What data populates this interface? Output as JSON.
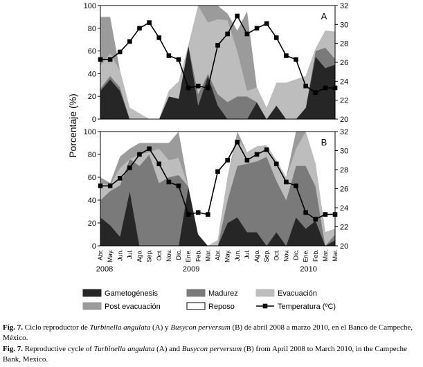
{
  "chart_data": [
    {
      "type": "area",
      "panel_label": "A",
      "ylabel": "Porcentaje (%)",
      "y2label": "",
      "ylim": [
        0,
        100
      ],
      "y2lim": [
        20,
        32
      ],
      "yticks": [
        0,
        20,
        40,
        60,
        80,
        100
      ],
      "y2ticks": [
        20,
        22,
        24,
        26,
        28,
        30,
        32
      ],
      "series": [
        {
          "name": "Gametogénesis",
          "color": "#262626",
          "values": [
            25,
            35,
            25,
            0,
            0,
            0,
            0,
            20,
            18,
            65,
            12,
            38,
            12,
            0,
            0,
            0,
            15,
            0,
            12,
            0,
            0,
            10,
            55,
            45,
            48
          ]
        },
        {
          "name": "Madurez",
          "color": "#7a7a7a",
          "values": [
            2,
            3,
            3,
            0,
            0,
            0,
            0,
            0,
            0,
            0,
            10,
            2,
            10,
            15,
            20,
            20,
            0,
            0,
            0,
            0,
            0,
            0,
            5,
            18,
            5
          ]
        },
        {
          "name": "Evacuación",
          "color": "#bdbdbd",
          "values": [
            20,
            20,
            15,
            10,
            5,
            0,
            0,
            5,
            15,
            0,
            78,
            45,
            66,
            72,
            40,
            5,
            13,
            10,
            20,
            32,
            35,
            28,
            2,
            15,
            24
          ]
        },
        {
          "name": "Post evacuación",
          "color": "#9b9b9b",
          "values": [
            43,
            32,
            0,
            0,
            0,
            0,
            0,
            0,
            0,
            0,
            0,
            15,
            12,
            6,
            18,
            70,
            0,
            0,
            0,
            0,
            0,
            0,
            0,
            0,
            0
          ]
        },
        {
          "name": "Reposo",
          "color": "#ffffff",
          "values": [
            10,
            0,
            57,
            90,
            95,
            100,
            100,
            75,
            67,
            35,
            0,
            0,
            0,
            7,
            22,
            5,
            72,
            90,
            68,
            68,
            65,
            62,
            38,
            22,
            23
          ]
        }
      ],
      "temperature": [
        26.3,
        26.3,
        27.1,
        28.2,
        29.6,
        30.2,
        28.6,
        26.7,
        26.3,
        23.3,
        23.5,
        23.3,
        27.8,
        29.0,
        30.9,
        29.0,
        29.6,
        30.1,
        28.6,
        26.7,
        26.3,
        23.5,
        22.8,
        23.3,
        23.3
      ]
    },
    {
      "type": "area",
      "panel_label": "B",
      "ylabel": "Porcentaje (%)",
      "y2label": "",
      "ylim": [
        0,
        100
      ],
      "y2lim": [
        20,
        32
      ],
      "yticks": [
        0,
        20,
        40,
        60,
        80,
        100
      ],
      "y2ticks": [
        20,
        22,
        24,
        26,
        28,
        30,
        32
      ],
      "series": [
        {
          "name": "Gametogénesis",
          "color": "#262626",
          "values": [
            25,
            18,
            8,
            48,
            0,
            0,
            0,
            0,
            0,
            52,
            10,
            0,
            0,
            20,
            25,
            12,
            12,
            0,
            12,
            0,
            25,
            15,
            22,
            0,
            5
          ]
        },
        {
          "name": "Madurez",
          "color": "#7a7a7a",
          "values": [
            15,
            30,
            45,
            28,
            70,
            80,
            55,
            60,
            62,
            0,
            0,
            0,
            0,
            20,
            45,
            60,
            62,
            78,
            45,
            40,
            45,
            55,
            30,
            0,
            5
          ]
        },
        {
          "name": "Evacuación",
          "color": "#bdbdbd",
          "values": [
            15,
            5,
            15,
            0,
            10,
            2,
            30,
            15,
            15,
            0,
            0,
            0,
            5,
            20,
            25,
            10,
            13,
            10,
            18,
            20,
            15,
            30,
            20,
            12,
            5
          ]
        },
        {
          "name": "Post evacuación",
          "color": "#9b9b9b",
          "values": [
            5,
            2,
            10,
            9,
            10,
            8,
            5,
            15,
            23,
            0,
            0,
            0,
            0,
            0,
            5,
            0,
            0,
            0,
            0,
            0,
            15,
            0,
            0,
            0,
            0
          ]
        },
        {
          "name": "Reposo",
          "color": "#ffffff",
          "values": [
            40,
            45,
            22,
            15,
            10,
            10,
            10,
            10,
            0,
            48,
            90,
            100,
            95,
            40,
            0,
            18,
            13,
            12,
            25,
            40,
            0,
            0,
            28,
            88,
            85
          ]
        }
      ],
      "temperature": [
        26.3,
        26.3,
        27.1,
        28.2,
        29.6,
        30.2,
        28.6,
        26.7,
        26.3,
        23.3,
        23.5,
        23.3,
        27.8,
        29.0,
        30.9,
        29.0,
        29.6,
        30.1,
        28.6,
        26.7,
        26.3,
        23.5,
        22.8,
        23.3,
        23.3
      ]
    }
  ],
  "x_categories": [
    "Abr.",
    "May.",
    "Jun.",
    "Jul.",
    "Ago.",
    "Sep.",
    "Oct.",
    "Nov.",
    "Dic.",
    "Ene.",
    "Feb.",
    "Mar.",
    "Abr.",
    "May.",
    "Jun.",
    "Jul.",
    "Ago.",
    "Sep.",
    "Oct.",
    "Nov.",
    "Dic.",
    "Ene.",
    "Feb.",
    "Mar.",
    "Mar."
  ],
  "year_labels": [
    {
      "label": "2008",
      "index": 0
    },
    {
      "label": "2009",
      "index": 9
    },
    {
      "label": "2010",
      "index": 21
    }
  ],
  "legend": [
    {
      "name": "Gametogénesis",
      "color": "#262626",
      "kind": "box"
    },
    {
      "name": "Madurez",
      "color": "#7a7a7a",
      "kind": "box"
    },
    {
      "name": "Evacuación",
      "color": "#bdbdbd",
      "kind": "box"
    },
    {
      "name": "Post evacuación",
      "color": "#9b9b9b",
      "kind": "box"
    },
    {
      "name": "Reposo",
      "color": "#ffffff",
      "kind": "box"
    },
    {
      "name": "Temperatura (ºC)",
      "color": "#000000",
      "kind": "line"
    }
  ],
  "caption": {
    "es": {
      "label": "Fig. 7.",
      "t1": " Ciclo reproductor de ",
      "s1": "Turbinella angulata",
      "t2": " (A) y ",
      "s2": "Busycon perversum",
      "t3": " (B) de abril 2008 a marzo 2010, en el Banco de Campeche, México."
    },
    "en": {
      "label": "Fig. 7.",
      "t1": " Reproductive cycle of ",
      "s1": "Turbinella angulata",
      "t2": " (A) and ",
      "s2": "Busycon perversum",
      "t3": " (B) from April 2008 to March 2010, in the Campeche Bank, Mexico."
    }
  }
}
